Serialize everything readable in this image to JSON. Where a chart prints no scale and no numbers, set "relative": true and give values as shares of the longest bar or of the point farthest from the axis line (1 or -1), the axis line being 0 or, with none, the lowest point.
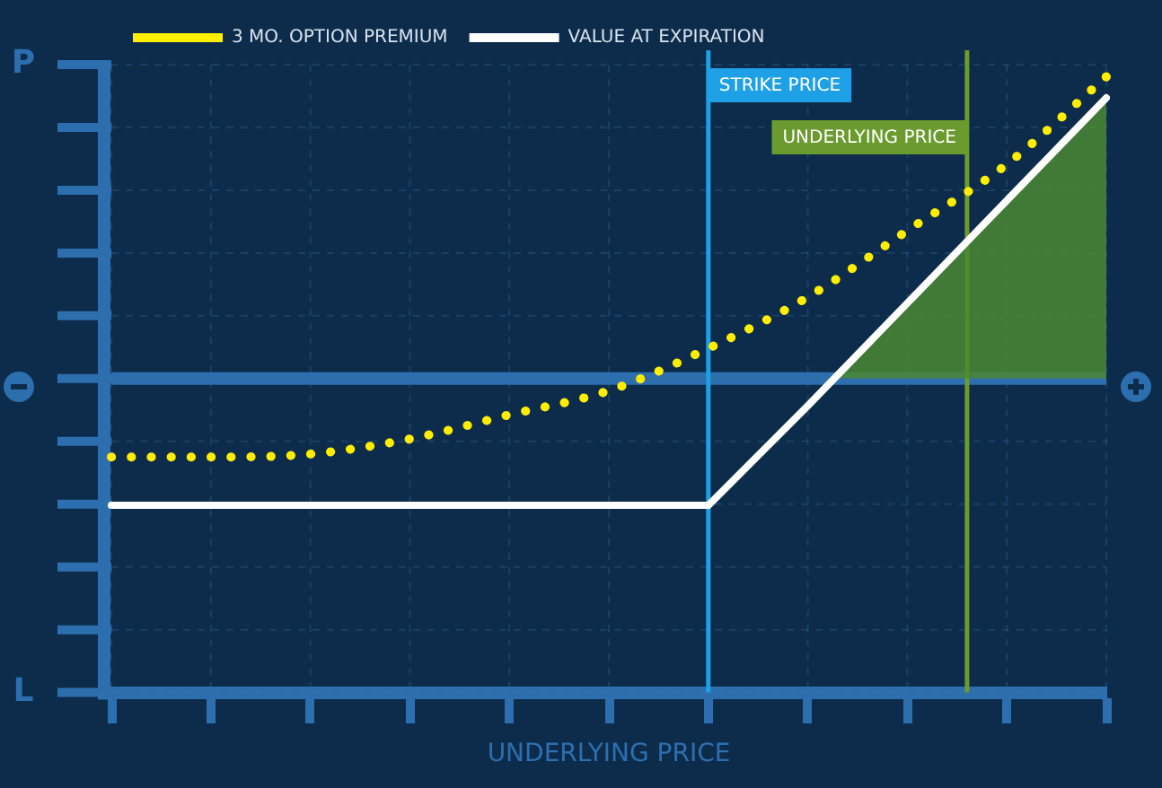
{
  "chart_data": {
    "type": "line",
    "relative": true,
    "categories": [
      null,
      null,
      null,
      null,
      null,
      null,
      null,
      null,
      null,
      null,
      null
    ],
    "legend": "top left",
    "marker": "none",
    "grid": true,
    "series": [
      {
        "name": "3 MO. OPTION PREMIUM",
        "color": "#ffee00",
        "line_style": "dotted",
        "values": [
          -0.26,
          -0.26,
          -0.25,
          -0.2,
          -0.12,
          -0.04,
          0.1,
          0.27,
          0.49,
          0.71,
          1.0
        ]
      },
      {
        "name": "VALUE AT EXPIRATION",
        "type": "area",
        "color": "#ffffff",
        "line_style": "solid",
        "values": [
          -0.42,
          -0.42,
          -0.42,
          -0.42,
          -0.42,
          -0.42,
          -0.42,
          -0.09,
          0.25,
          0.59,
          0.93
        ]
      }
    ],
    "ref_lines": [
      {
        "axis": "y",
        "value": 0,
        "color": "#2d6fae"
      }
    ],
    "annotations": [
      "P",
      "L",
      "STRIKE PRICE",
      "UNDERLYING PRICE",
      "UNDERLYING PRICE"
    ]
  }
}
